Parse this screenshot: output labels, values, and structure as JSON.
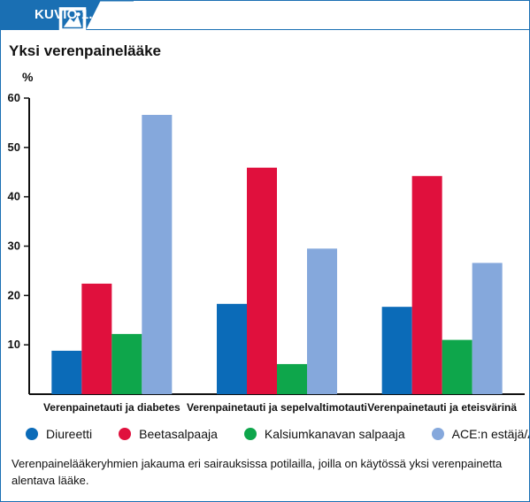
{
  "header": {
    "figure_label": "KUVIO 1.",
    "title": "Yksi verenpainelääke",
    "unit": "%",
    "caption": "Verenpainelääkeryhmien jakauma eri sairauksissa potilailla, joilla on käytössä yksi verenpainetta alentava lääke."
  },
  "legend": {
    "items": [
      {
        "label": "Diureetti",
        "color": "#0b6bb8"
      },
      {
        "label": "Beetasalpaaja",
        "color": "#e0103d"
      },
      {
        "label": "Kalsiumkanavan salpaaja",
        "color": "#0ea64b"
      },
      {
        "label": "ACE:n estäjä/ATR-salpaaja",
        "color": "#85a8dc"
      }
    ]
  },
  "chart_data": {
    "type": "bar",
    "categories": [
      "Verenpainetauti ja diabetes",
      "Verenpainetauti ja sepelvaltimotauti",
      "Verenpainetauti ja eteisvärinä"
    ],
    "series": [
      {
        "name": "Diureetti",
        "values": [
          8.8,
          18.3,
          17.7
        ]
      },
      {
        "name": "Beetasalpaaja",
        "values": [
          22.4,
          45.9,
          44.2
        ]
      },
      {
        "name": "Kalsiumkanavan salpaaja",
        "values": [
          12.2,
          6.1,
          11.0
        ]
      },
      {
        "name": "ACE:n estäjä/ATR-salpaaja",
        "values": [
          56.6,
          29.5,
          26.6
        ]
      }
    ],
    "ylim": [
      0,
      60
    ],
    "yticks": [
      10,
      20,
      30,
      40,
      50,
      60
    ],
    "ylabel": "%",
    "grid": false,
    "legend_position": "bottom",
    "colors": [
      "#0b6bb8",
      "#e0103d",
      "#0ea64b",
      "#85a8dc"
    ]
  },
  "colors": {
    "frame": "#1a6fb3",
    "axis": "#111111"
  }
}
